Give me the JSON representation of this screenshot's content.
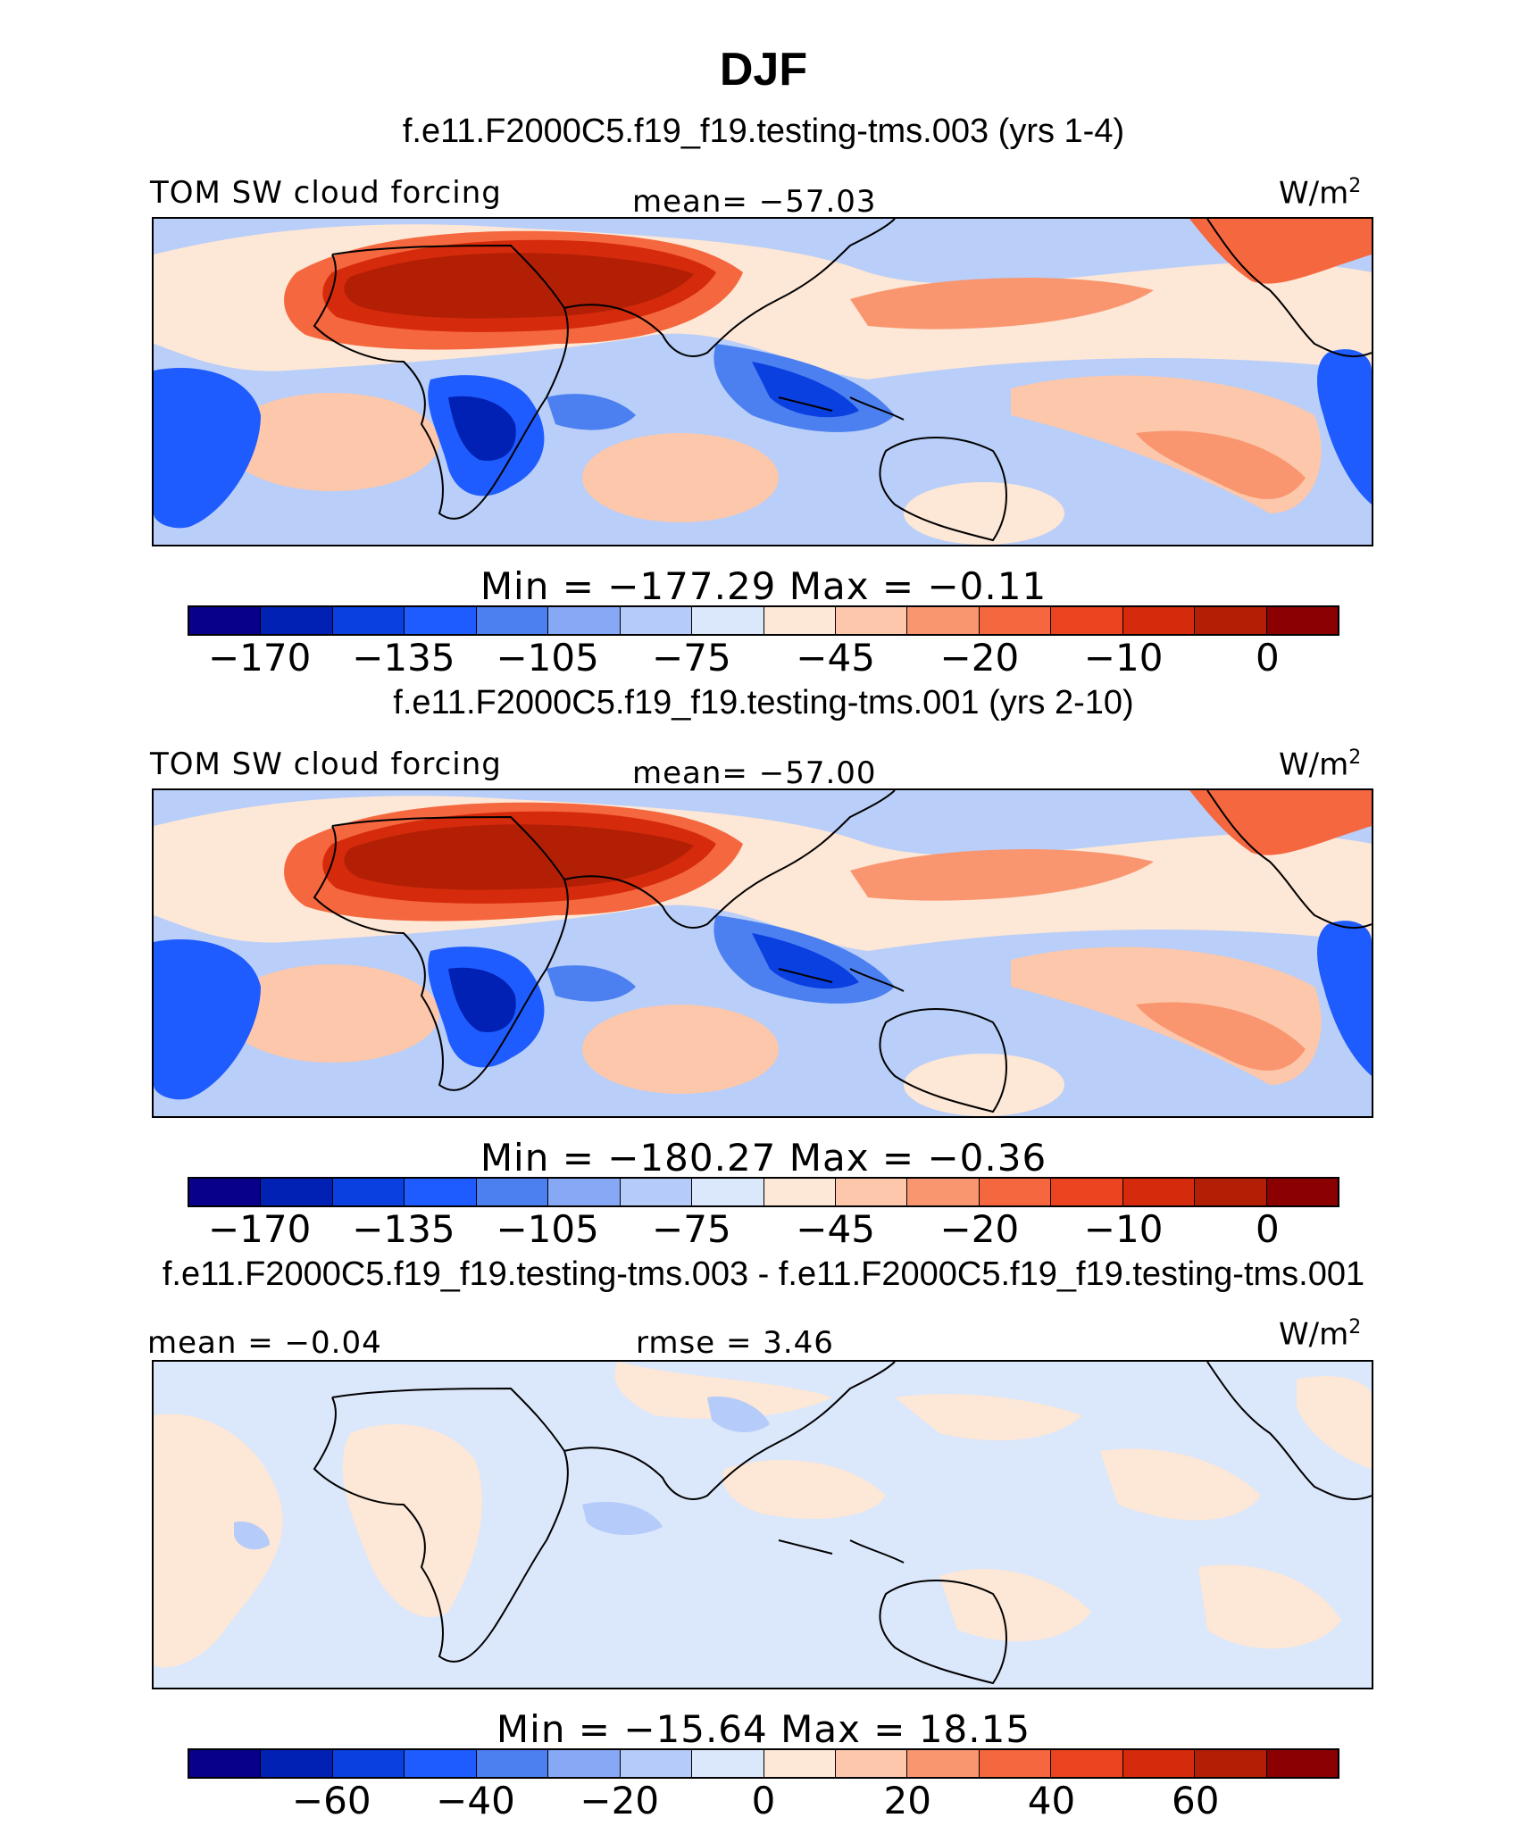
{
  "chart_data": {
    "type": "heatmap",
    "title": "DJF",
    "panels": [
      {
        "case": "f.e11.F2000C5.f19_f19.testing-tms.003 (yrs 1-4)",
        "variable": "TOM SW cloud forcing",
        "stat": "mean= −57.03",
        "units": "W/m",
        "units_sup": "2",
        "minmax": "Min = −177.29  Max =  −0.11",
        "min": -177.29,
        "max": -0.11,
        "mean": -57.03,
        "colorbar_ticks": [
          "−170",
          "−135",
          "−105",
          "−75",
          "−45",
          "−20",
          "−10",
          "0"
        ]
      },
      {
        "case": "f.e11.F2000C5.f19_f19.testing-tms.001 (yrs 2-10)",
        "variable": "TOM SW cloud forcing",
        "stat": "mean= −57.00",
        "units": "W/m",
        "units_sup": "2",
        "minmax": "Min = −180.27  Max =  −0.36",
        "min": -180.27,
        "max": -0.36,
        "mean": -57.0,
        "colorbar_ticks": [
          "−170",
          "−135",
          "−105",
          "−75",
          "−45",
          "−20",
          "−10",
          "0"
        ]
      },
      {
        "case": "f.e11.F2000C5.f19_f19.testing-tms.003 - f.e11.F2000C5.f19_f19.testing-tms.001",
        "variable": "mean =  −0.04",
        "stat": "rmse =   3.46",
        "units": "W/m",
        "units_sup": "2",
        "minmax": "Min = −15.64  Max =  18.15",
        "min": -15.64,
        "max": 18.15,
        "mean": -0.04,
        "rmse": 3.46,
        "colorbar_ticks": [
          "−60",
          "−40",
          "−20",
          "0",
          "20",
          "40",
          "60"
        ]
      }
    ],
    "colorbar_colors": [
      "#08008a",
      "#0021b4",
      "#0a3fe0",
      "#1f5cff",
      "#4c80f0",
      "#86a8f5",
      "#b5cbf9",
      "#dbe7fb",
      "#fde7d6",
      "#fcc7ab",
      "#f9966f",
      "#f5673e",
      "#ec4320",
      "#d52b0c",
      "#b21f05",
      "#8b0000"
    ]
  }
}
